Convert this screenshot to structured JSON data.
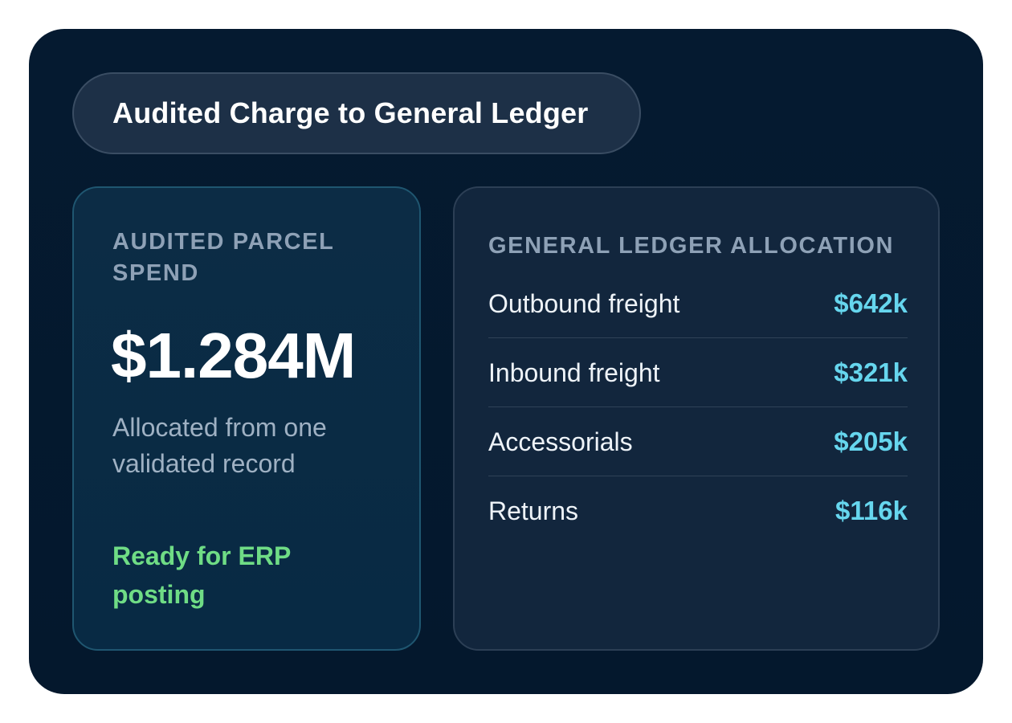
{
  "header": {
    "title": "Audited Charge to General Ledger"
  },
  "spend_card": {
    "label": "AUDITED PARCEL SPEND",
    "value": "$1.284M",
    "description": "Allocated from one validated record",
    "status": "Ready for ERP posting",
    "status_color": "#6fdc85"
  },
  "gl_allocation": {
    "label": "GENERAL LEDGER ALLOCATION",
    "rows": [
      {
        "name": "Outbound freight",
        "amount": "$642k"
      },
      {
        "name": "Inbound freight",
        "amount": "$321k"
      },
      {
        "name": "Accessorials",
        "amount": "$205k"
      },
      {
        "name": "Returns",
        "amount": "$116k"
      }
    ],
    "amount_color": "#66d6ee"
  },
  "colors": {
    "background": "#051a30",
    "accent_cyan": "#66d6ee",
    "accent_green": "#6fdc85"
  }
}
